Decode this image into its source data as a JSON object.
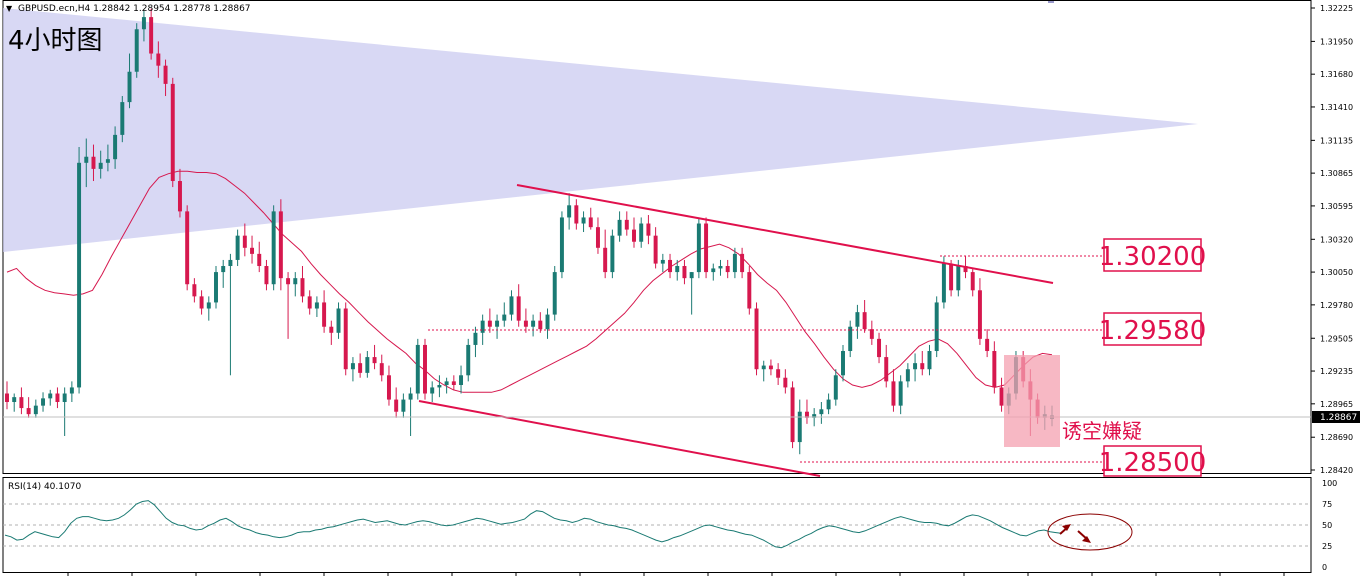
{
  "chart_data": [
    {
      "type": "candlestick",
      "symbol_info": "GBPUSD.ecn,H4  1.28842 1.28954 1.28778 1.28867",
      "title": "4小时图",
      "current_price": "1.28867",
      "y_ticks": [
        "1.32225",
        "1.31950",
        "1.31680",
        "1.31410",
        "1.31135",
        "1.30865",
        "1.30595",
        "1.30320",
        "1.30050",
        "1.29780",
        "1.29505",
        "1.29235",
        "1.28965",
        "1.28690",
        "1.28420"
      ],
      "ylim": [
        1.2842,
        1.32225
      ],
      "candles": [
        [
          1.2905,
          1.2915,
          1.2892,
          1.2898
        ],
        [
          1.2898,
          1.2905,
          1.289,
          1.2902
        ],
        [
          1.2902,
          1.291,
          1.2888,
          1.2893
        ],
        [
          1.2893,
          1.2902,
          1.2885,
          1.2888
        ],
        [
          1.2888,
          1.29,
          1.2885,
          1.2895
        ],
        [
          1.2895,
          1.2906,
          1.289,
          1.2901
        ],
        [
          1.2901,
          1.2908,
          1.2895,
          1.2905
        ],
        [
          1.2905,
          1.291,
          1.2893,
          1.2898
        ],
        [
          1.2898,
          1.291,
          1.287,
          1.2905
        ],
        [
          1.2905,
          1.2915,
          1.2898,
          1.291
        ],
        [
          1.291,
          1.3108,
          1.2905,
          1.3095
        ],
        [
          1.3095,
          1.3115,
          1.3075,
          1.31
        ],
        [
          1.31,
          1.311,
          1.308,
          1.309
        ],
        [
          1.309,
          1.3105,
          1.3082,
          1.3095
        ],
        [
          1.3095,
          1.311,
          1.3088,
          1.3098
        ],
        [
          1.3098,
          1.3125,
          1.309,
          1.3118
        ],
        [
          1.3118,
          1.315,
          1.3112,
          1.3145
        ],
        [
          1.3145,
          1.3185,
          1.314,
          1.317
        ],
        [
          1.317,
          1.321,
          1.3165,
          1.3205
        ],
        [
          1.3205,
          1.322,
          1.3195,
          1.3215
        ],
        [
          1.3215,
          1.3222,
          1.318,
          1.3185
        ],
        [
          1.3185,
          1.3195,
          1.3165,
          1.3175
        ],
        [
          1.3175,
          1.318,
          1.315,
          1.316
        ],
        [
          1.316,
          1.3165,
          1.3075,
          1.308
        ],
        [
          1.308,
          1.309,
          1.305,
          1.3055
        ],
        [
          1.3055,
          1.306,
          1.299,
          1.2995
        ],
        [
          1.2995,
          1.3,
          1.298,
          1.2985
        ],
        [
          1.2985,
          1.299,
          1.297,
          1.2975
        ],
        [
          1.2975,
          1.2985,
          1.2965,
          1.298
        ],
        [
          1.298,
          1.301,
          1.2975,
          1.3005
        ],
        [
          1.3005,
          1.3015,
          1.2992,
          1.301
        ],
        [
          1.301,
          1.302,
          1.292,
          1.3015
        ],
        [
          1.3015,
          1.304,
          1.301,
          1.3035
        ],
        [
          1.3035,
          1.3045,
          1.3018,
          1.3025
        ],
        [
          1.3025,
          1.3035,
          1.3012,
          1.302
        ],
        [
          1.302,
          1.303,
          1.3005,
          1.301
        ],
        [
          1.301,
          1.3015,
          1.299,
          1.2995
        ],
        [
          1.2995,
          1.306,
          1.299,
          1.3055
        ],
        [
          1.3055,
          1.3065,
          1.299,
          1.3
        ],
        [
          1.3,
          1.3005,
          1.295,
          1.2995
        ],
        [
          1.2995,
          1.3005,
          1.2985,
          1.3
        ],
        [
          1.3,
          1.301,
          1.298,
          1.2985
        ],
        [
          1.2985,
          1.299,
          1.297,
          1.2975
        ],
        [
          1.2975,
          1.2985,
          1.2968,
          1.298
        ],
        [
          1.298,
          1.299,
          1.2955,
          1.296
        ],
        [
          1.296,
          1.2965,
          1.2945,
          1.2955
        ],
        [
          1.2955,
          1.298,
          1.295,
          1.2975
        ],
        [
          1.2975,
          1.298,
          1.292,
          1.2925
        ],
        [
          1.2925,
          1.2935,
          1.2915,
          1.293
        ],
        [
          1.293,
          1.2938,
          1.2918,
          1.2922
        ],
        [
          1.2922,
          1.294,
          1.2918,
          1.2935
        ],
        [
          1.2935,
          1.2945,
          1.2925,
          1.293
        ],
        [
          1.293,
          1.2937,
          1.2915,
          1.292
        ],
        [
          1.292,
          1.2928,
          1.2895,
          1.29
        ],
        [
          1.29,
          1.291,
          1.2885,
          1.289
        ],
        [
          1.289,
          1.2905,
          1.2885,
          1.29
        ],
        [
          1.29,
          1.291,
          1.287,
          1.2905
        ],
        [
          1.2905,
          1.295,
          1.29,
          1.2945
        ],
        [
          1.2945,
          1.295,
          1.29,
          1.2905
        ],
        [
          1.2905,
          1.2915,
          1.2898,
          1.291
        ],
        [
          1.291,
          1.292,
          1.2902,
          1.2912
        ],
        [
          1.2912,
          1.2918,
          1.2905,
          1.2915
        ],
        [
          1.2915,
          1.292,
          1.2908,
          1.2912
        ],
        [
          1.2912,
          1.2928,
          1.2905,
          1.292
        ],
        [
          1.292,
          1.295,
          1.2915,
          1.2945
        ],
        [
          1.2945,
          1.296,
          1.2935,
          1.2955
        ],
        [
          1.2955,
          1.297,
          1.2945,
          1.2965
        ],
        [
          1.2965,
          1.2975,
          1.2955,
          1.296
        ],
        [
          1.296,
          1.297,
          1.295,
          1.2965
        ],
        [
          1.2965,
          1.298,
          1.296,
          1.297
        ],
        [
          1.297,
          1.299,
          1.2965,
          1.2985
        ],
        [
          1.2985,
          1.2995,
          1.296,
          1.2965
        ],
        [
          1.2965,
          1.2975,
          1.2955,
          1.296
        ],
        [
          1.296,
          1.297,
          1.2952,
          1.2965
        ],
        [
          1.2965,
          1.2972,
          1.2955,
          1.2958
        ],
        [
          1.2958,
          1.2975,
          1.295,
          1.297
        ],
        [
          1.297,
          1.301,
          1.2965,
          1.3005
        ],
        [
          1.3005,
          1.3055,
          1.3,
          1.305
        ],
        [
          1.305,
          1.307,
          1.304,
          1.306
        ],
        [
          1.306,
          1.3065,
          1.304,
          1.3045
        ],
        [
          1.3045,
          1.3055,
          1.3038,
          1.305
        ],
        [
          1.305,
          1.3058,
          1.304,
          1.3042
        ],
        [
          1.3042,
          1.305,
          1.302,
          1.3025
        ],
        [
          1.3025,
          1.304,
          1.3,
          1.3005
        ],
        [
          1.3005,
          1.304,
          1.3,
          1.3035
        ],
        [
          1.3035,
          1.3055,
          1.303,
          1.3048
        ],
        [
          1.3048,
          1.3055,
          1.3035,
          1.304
        ],
        [
          1.304,
          1.305,
          1.3025,
          1.303
        ],
        [
          1.303,
          1.305,
          1.3025,
          1.3045
        ],
        [
          1.3045,
          1.3052,
          1.3028,
          1.3035
        ],
        [
          1.3035,
          1.3042,
          1.3008,
          1.3012
        ],
        [
          1.3012,
          1.302,
          1.3005,
          1.3015
        ],
        [
          1.3015,
          1.302,
          1.3,
          1.3005
        ],
        [
          1.3005,
          1.3015,
          1.2998,
          1.301
        ],
        [
          1.301,
          1.3015,
          1.2995,
          1.3
        ],
        [
          1.3,
          1.3005,
          1.297,
          1.3005
        ],
        [
          1.3005,
          1.305,
          1.3,
          1.3045
        ],
        [
          1.3045,
          1.305,
          1.3,
          1.3005
        ],
        [
          1.3005,
          1.3012,
          1.2998,
          1.3008
        ],
        [
          1.3008,
          1.3015,
          1.3002,
          1.301
        ],
        [
          1.301,
          1.3015,
          1.3,
          1.3005
        ],
        [
          1.3005,
          1.3025,
          1.3,
          1.302
        ],
        [
          1.302,
          1.3025,
          1.3,
          1.3005
        ],
        [
          1.3005,
          1.301,
          1.297,
          1.2975
        ],
        [
          1.2975,
          1.298,
          1.292,
          1.2925
        ],
        [
          1.2925,
          1.2932,
          1.2915,
          1.2928
        ],
        [
          1.2928,
          1.2933,
          1.292,
          1.2925
        ],
        [
          1.2925,
          1.293,
          1.2912,
          1.2918
        ],
        [
          1.2918,
          1.2925,
          1.2905,
          1.291
        ],
        [
          1.291,
          1.2915,
          1.286,
          1.2865
        ],
        [
          1.2865,
          1.29,
          1.2855,
          1.289
        ],
        [
          1.289,
          1.29,
          1.288,
          1.2885
        ],
        [
          1.2885,
          1.2893,
          1.2878,
          1.2888
        ],
        [
          1.2888,
          1.2898,
          1.288,
          1.2892
        ],
        [
          1.2892,
          1.2905,
          1.2888,
          1.29
        ],
        [
          1.29,
          1.2925,
          1.2895,
          1.292
        ],
        [
          1.292,
          1.2945,
          1.2915,
          1.294
        ],
        [
          1.294,
          1.2965,
          1.2935,
          1.296
        ],
        [
          1.296,
          1.2978,
          1.295,
          1.2972
        ],
        [
          1.2972,
          1.2982,
          1.2955,
          1.2958
        ],
        [
          1.2958,
          1.2965,
          1.2945,
          1.295
        ],
        [
          1.295,
          1.2955,
          1.293,
          1.2935
        ],
        [
          1.2935,
          1.2945,
          1.291,
          1.2915
        ],
        [
          1.2915,
          1.2925,
          1.289,
          1.2895
        ],
        [
          1.2895,
          1.292,
          1.2888,
          1.2915
        ],
        [
          1.2915,
          1.293,
          1.291,
          1.2925
        ],
        [
          1.2925,
          1.2938,
          1.2915,
          1.293
        ],
        [
          1.293,
          1.294,
          1.292,
          1.2925
        ],
        [
          1.2925,
          1.2945,
          1.292,
          1.294
        ],
        [
          1.294,
          1.2985,
          1.2935,
          1.298
        ],
        [
          1.298,
          1.3018,
          1.2975,
          1.3012
        ],
        [
          1.3012,
          1.3015,
          1.2985,
          1.299
        ],
        [
          1.299,
          1.3015,
          1.2985,
          1.301
        ],
        [
          1.301,
          1.3018,
          1.3,
          1.3005
        ],
        [
          1.3005,
          1.3008,
          1.2985,
          1.299
        ],
        [
          1.299,
          1.3,
          1.2945,
          1.295
        ],
        [
          1.295,
          1.2958,
          1.2935,
          1.294
        ],
        [
          1.294,
          1.2948,
          1.2905,
          1.291
        ],
        [
          1.291,
          1.2918,
          1.289,
          1.2895
        ],
        [
          1.2895,
          1.291,
          1.2888,
          1.2905
        ],
        [
          1.2905,
          1.294,
          1.29,
          1.2935
        ],
        [
          1.2935,
          1.294,
          1.291,
          1.2915
        ],
        [
          1.2915,
          1.2925,
          1.287,
          1.29
        ],
        [
          1.29,
          1.2905,
          1.288,
          1.2885
        ],
        [
          1.2885,
          1.2895,
          1.2875,
          1.2888
        ],
        [
          1.2884,
          1.2895,
          1.2878,
          1.2887
        ]
      ],
      "ma_series": [
        1.3005,
        1.3008,
        1.3,
        1.2994,
        1.299,
        1.2988,
        1.2987,
        1.2986,
        1.2987,
        1.299,
        1.3003,
        1.3018,
        1.3032,
        1.3046,
        1.306,
        1.3074,
        1.3083,
        1.3086,
        1.3088,
        1.3088,
        1.3087,
        1.3087,
        1.3086,
        1.3082,
        1.3076,
        1.307,
        1.3062,
        1.3054,
        1.3045,
        1.3036,
        1.3029,
        1.3022,
        1.3012,
        1.3003,
        1.2995,
        1.2987,
        1.298,
        1.2972,
        1.2964,
        1.2957,
        1.295,
        1.2944,
        1.2938,
        1.293,
        1.2924,
        1.2917,
        1.2912,
        1.2908,
        1.2906,
        1.2906,
        1.2906,
        1.2906,
        1.2908,
        1.2912,
        1.2916,
        1.292,
        1.2924,
        1.2928,
        1.2932,
        1.2936,
        1.294,
        1.2944,
        1.295,
        1.2957,
        1.2964,
        1.2971,
        1.298,
        1.299,
        1.2998,
        1.3004,
        1.301,
        1.3015,
        1.302,
        1.3024,
        1.3026,
        1.3028,
        1.3025,
        1.302,
        1.3012,
        1.3003,
        1.2996,
        1.299,
        1.298,
        1.2968,
        1.2956,
        1.2946,
        1.2935,
        1.2925,
        1.2917,
        1.2912,
        1.291,
        1.2912,
        1.2916,
        1.2922,
        1.2928,
        1.2936,
        1.2944,
        1.2948,
        1.295,
        1.2946,
        1.2938,
        1.2928,
        1.2918,
        1.2912,
        1.291,
        1.2912,
        1.292,
        1.2928,
        1.2935,
        1.2938,
        1.2937
      ],
      "annotations": {
        "level_1": "1.30200",
        "level_2": "1.29580",
        "level_3": "1.28500",
        "note": "诱空嫌疑"
      },
      "rsi": {
        "label": "RSI(14) 40.1070",
        "levels": [
          "100",
          "75",
          "50",
          "25",
          "0"
        ],
        "values": [
          38,
          36,
          32,
          33,
          38,
          42,
          40,
          38,
          36,
          35,
          42,
          52,
          58,
          60,
          60,
          58,
          56,
          55,
          56,
          58,
          62,
          68,
          75,
          78,
          79,
          74,
          66,
          58,
          53,
          50,
          49,
          46,
          44,
          45,
          49,
          52,
          56,
          58,
          54,
          49,
          46,
          44,
          41,
          39,
          38,
          36,
          35,
          36,
          38,
          41,
          42,
          42,
          44,
          45,
          47,
          48,
          50,
          52,
          54,
          56,
          57,
          55,
          53,
          54,
          55,
          53,
          51,
          50,
          52,
          54,
          55,
          54,
          52,
          50,
          49,
          50,
          52,
          54,
          56,
          58,
          57,
          55,
          53,
          51,
          52,
          53,
          55,
          57,
          63,
          67,
          66,
          62,
          58,
          56,
          55,
          53,
          55,
          58,
          57,
          54,
          52,
          50,
          49,
          47,
          46,
          44,
          41,
          38,
          35,
          32,
          30,
          32,
          35,
          37,
          40,
          43,
          46,
          49,
          50,
          48,
          46,
          44,
          43,
          41,
          39,
          38,
          35,
          32,
          28,
          24,
          23,
          26,
          30,
          33,
          37,
          40,
          44,
          47,
          49,
          48,
          46,
          44,
          42,
          41,
          43,
          46,
          49,
          52,
          55,
          58,
          60,
          58,
          56,
          54,
          53,
          53,
          52,
          50,
          49,
          52,
          56,
          60,
          62,
          61,
          58,
          55,
          51,
          47,
          44,
          41,
          38,
          37,
          40,
          43,
          44,
          42,
          41,
          40
        ]
      }
    }
  ]
}
